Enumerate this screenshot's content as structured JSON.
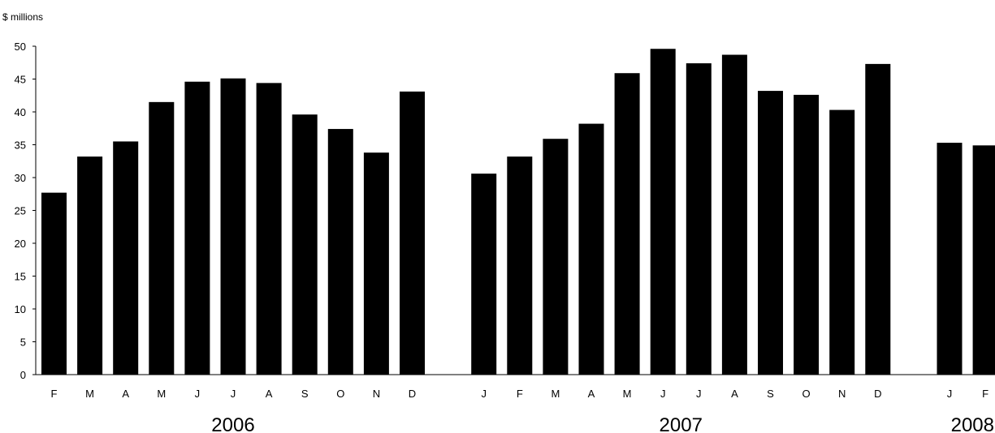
{
  "chart_data": {
    "type": "bar",
    "ylabel": "$ millions",
    "ylim": [
      0,
      50
    ],
    "yticks": [
      0,
      5,
      10,
      15,
      20,
      25,
      30,
      35,
      40,
      45,
      50
    ],
    "grid": false,
    "bar_color": "#000000",
    "groups": [
      {
        "year": "2006",
        "categories": [
          "F",
          "M",
          "A",
          "M",
          "J",
          "J",
          "A",
          "S",
          "O",
          "N",
          "D"
        ],
        "values": [
          27.7,
          33.2,
          35.5,
          41.5,
          44.6,
          45.1,
          44.4,
          39.6,
          37.4,
          33.8,
          43.1
        ]
      },
      {
        "year": "2007",
        "categories": [
          "J",
          "F",
          "M",
          "A",
          "M",
          "J",
          "J",
          "A",
          "S",
          "O",
          "N",
          "D"
        ],
        "values": [
          30.6,
          33.2,
          35.9,
          38.2,
          45.9,
          49.6,
          47.4,
          48.7,
          43.2,
          42.6,
          40.3,
          47.3
        ]
      },
      {
        "year": "2008",
        "categories": [
          "J",
          "F"
        ],
        "values": [
          35.3,
          34.9
        ]
      }
    ]
  }
}
